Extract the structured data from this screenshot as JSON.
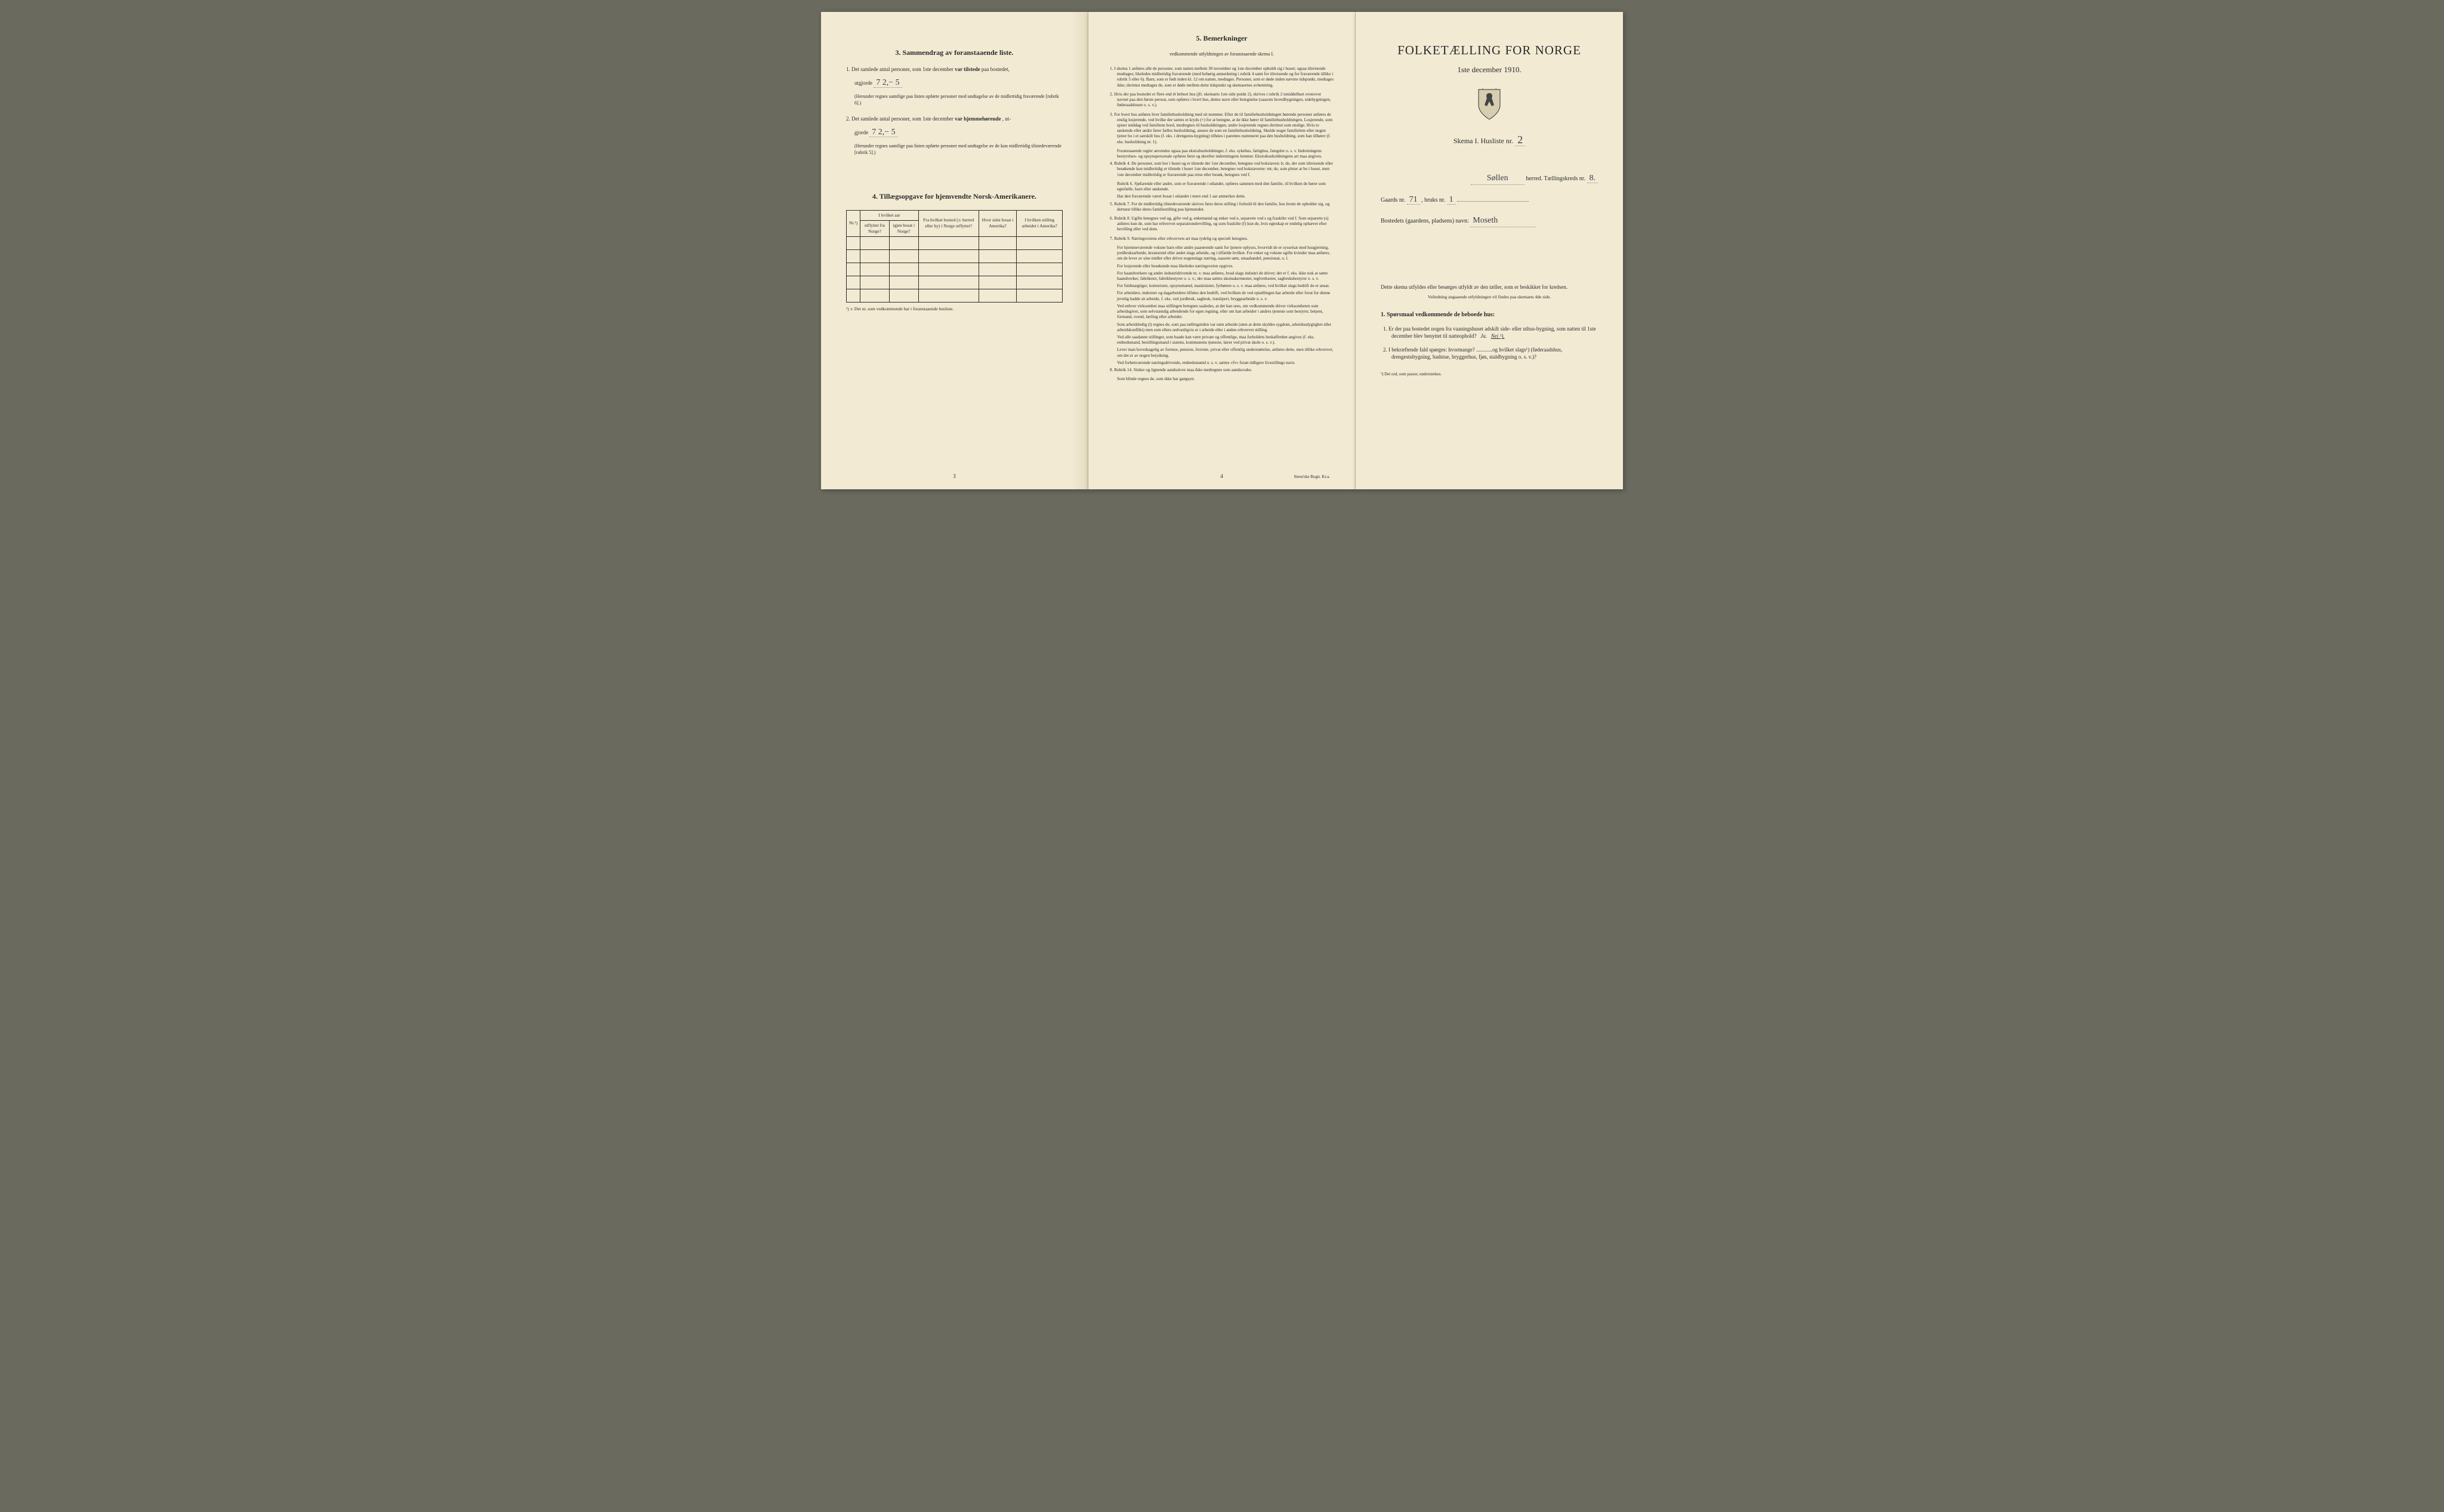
{
  "left": {
    "section3_title": "3.   Sammendrag av foranstaaende liste.",
    "item1_prefix": "1.  Det samlede antal personer, som 1ste december",
    "item1_bold": "var tilstede",
    "item1_suffix": "paa bostedet,",
    "item1_line2": "utgjorde",
    "item1_value": "7 2,− 5",
    "item1_note": "(Herunder regnes samtlige paa listen opførte personer med undtagelse av de midlertidig fraværende [rubrik 6].)",
    "item2_prefix": "2.  Det samlede antal personer, som 1ste december",
    "item2_bold": "var hjemmehørende",
    "item2_suffix": ", ut-",
    "item2_line2": "gjorde",
    "item2_value": "7 2,− 5",
    "item2_note": "(Herunder regnes samtlige paa listen opførte personer med undtagelse av de kun midlertidig tilstedeværende [rubrik 5].)",
    "section4_title": "4.   Tillægsopgave for hjemvendte Norsk-Amerikanere.",
    "table": {
      "headers": {
        "nr": "Nr.¹)",
        "col_group": "I hvilket aar",
        "col1a": "utflyttet fra Norge?",
        "col1b": "igjen bosat i Norge?",
        "col2": "Fra hvilket bosted (ɔ: herred eller by) i Norge utflyttet?",
        "col3": "Hvor sidst bosat i Amerika?",
        "col4": "I hvilken stilling arbeidet i Amerika?"
      },
      "rows": 5
    },
    "footnote": "¹) ɔ: Det nr. som vedkommende har i foranstaaende husliste.",
    "page_num": "3"
  },
  "middle": {
    "title": "5.   Bemerkninger",
    "subtitle": "vedkommende utfyldningen av foranstaaende skema I.",
    "items": [
      {
        "n": "1.",
        "text": "I skema 1 anføres alle de personer, som natten mellem 30 november og 1ste december opholdt sig i huset; ogsaa tilreisende medtages; likeledes midlertidig fraværende (med behørig anmerkning i rubrik 4 samt for tilreisende og for fraværende tillike i rubrik 5 eller 6). Barn, som er født inden kl. 12 om natten, medtages. Personer, som er døde inden nævnte tidspunkt, medtages ikke; derimot medtages de, som er døde mellem dette tidspunkt og skemaernes avhentning."
      },
      {
        "n": "2.",
        "text": "Hvis der paa bostedet er flere end ét beboet hus (jfr. skemaets 1ste side punkt 2), skrives i rubrik 2 umiddelbart ovenover navnet paa den første person, som opføres i hvert hus, dettes navn eller betegnelse (saasom hovedbygningen, sidebygningen, føderaadshuset o. s. v.)."
      },
      {
        "n": "3.",
        "text": "For hvert hus anføres hver familiehusholdning med sit nummer. Efter de til familiehusholdningen hørende personer anføres de enslig losjerende, ved hvilke der sættes et kryds (×) for at betegne, at de ikke hører til familiehusholdningen. Losjerende, som spiser middag ved familiens bord, medregnes til husholdningen; andre losjerende regnes derimot som enslige. Hvis to søskende eller andre fører fælles husholdning, ansees de som en familiehusholdning. Skulde noget familielem eller nogen tjener bo i et særskilt hus (f. eks. i drengestu-bygning) tilføies i parentes nummeret paa den husholdning, som han tilhører (f. eks. husholdning nr. 1).",
        "sub": [
          "Foranstaaende regler anvendes ogsaa paa ekstrahusholdninger, f. eks. sykehus, fattighus, fængsler o. s. v. Indretningens bestyrelses- og opsynspersonale opføres først og derefter indretningens lemmer. Ekstrahusholdningens art maa angives."
        ]
      },
      {
        "n": "4.",
        "text": "Rubrik 4. De personer, som bor i huset og er tilstede der 1ste december, betegnes ved bokstaven: b; de, der som tilreisende eller besøkende kun midlertidig er tilstede i huset 1ste december, betegnes ved bokstaverne: mt; de, som pleier at bo i huset, men 1ste december midlertidig er fraværende paa reise eller besøk, betegnes ved f.",
        "sub": [
          "Rubrik 6. Sjøfarende eller andre, som er fraværende i utlandet, opføres sammen med den familie, til hvilken de hører som egtefælle, barn eller søskende.",
          "Har den fraværende været bosat i utlandet i mere end 1 aar anmerkes dette."
        ]
      },
      {
        "n": "5.",
        "text": "Rubrik 7. For de midlertidig tilstedeværende skrives først deres stilling i forhold til den familie, hos hvem de opholder sig, og dernæst tillike deres familiestilling paa hjemstedet."
      },
      {
        "n": "6.",
        "text": "Rubrik 8. Ugifte betegnes ved ug, gifte ved g, enkemænd og enker ved e, separerte ved s og fraskilte ved f. Som separerte (s) anføres kun de, som har erhvervet separationsbevilling, og som fraskilte (f) kun de, hvis egteskap er endelig ophævet efter bevilling eller ved dom."
      },
      {
        "n": "7.",
        "text": "Rubrik 9. Næringsveiens eller erhvervets art maa tydelig og specielt betegnes.",
        "sub": [
          "For hjemmeværende voksne barn eller andre paarørende samt for tjenere oplyses, hvorvidt de er sysselsat med husgjerning, jordbruksarbeide, kreaturstel eller andet slags arbeide, og i tilfælde hvilket. For enker og voksne ugifte kvinder maa anføres, om de lever av sine midler eller driver nogenslags næring, saasom søm, smaahandel, pensionat, o. l.",
          "For losjerende eller besøkende maa likeledes næringsveien opgives.",
          "For haandverkere og andre industridrivende m. v. maa anføres, hvad slags industri de driver; det er f. eks. ikke nok at sætte haandverker, fabrikeier, fabrikbestyrer o. s. v.; der maa sættes skomakermester, teglverkseier, sagbruksbestyrer o. s. v.",
          "For fuldmægtiger, kontorister, opsynsmænd, maskinister, fyrbøtere o. s. v. maa anføres, ved hvilket slags bedrift de er ansat.",
          "For arbeidere, inderster og dagarbeidere tilføies den bedrift, ved hvilken de ved optællingen har arbeide eller forut for denne jevnlig hadde sit arbeide, f. eks. ved jordbruk, sagbruk, træsliperi, bryggearbeide o. s. v.",
          "Ved enhver virksomhet maa stillingen betegnes saaledes, at det kan sees, om vedkommende driver virksomheten som arbeidsgiver, som selvstændig arbeidende for egen regning, eller om han arbeider i andres tjeneste som bestyrer, betjent, formand, svend, lærling eller arbeider.",
          "Som arbeidsledig (l) regnes de, som paa tællingstiden var uten arbeide (uten at dette skyldes sygdom, arbeidsudygtighet eller arbeidskonflikt) men som ellers sedvanligvis er i arbeide eller i anden erhvervet stilling.",
          "Ved alle saadanne stillinger, som baade kan være private og offentlige, maa forholdets beskaffenhet angives (f. eks. embedsmand, bestillingsmand i statens, kommunens tjeneste, lærer ved privat skole o. s. v.).",
          "Lever man hovedsagelig av formue, pension, livrente, privat eller offentlig understøttelse, anføres dette, men tillike erhvervet, om det er av nogen betydning.",
          "Ved forhenværende næringsdrivende, embedsmænd o. s. v. sættes «fv» foran tidligere livsstillings navn."
        ]
      },
      {
        "n": "8.",
        "text": "Rubrik 14. Sinker og lignende aandsslove maa ikke medregnes som aandssvake.",
        "sub": [
          "Som blinde regnes de, som ikke har gangsyn."
        ]
      }
    ],
    "page_num": "4",
    "printer": "Steen'ske Bogtr. Kr.a."
  },
  "right": {
    "title": "FOLKETÆLLING FOR NORGE",
    "date": "1ste december 1910.",
    "skema_label": "Skema I.   Husliste nr.",
    "husliste_nr": "2",
    "herred_value": "Søllen",
    "herred_label": "herred.  Tællingskreds nr.",
    "kreds_nr": "8.",
    "gaards_label": "Gaards nr.",
    "gaards_nr": "71",
    "bruks_label": ", bruks nr.",
    "bruks_nr": "1",
    "bosted_label": "Bostedets (gaardens, pladsens) navn:",
    "bosted_value": "Moseth",
    "instruction": "Dette skema utfyldes eller besørges utfyldt av den tæller, som er beskikket for kredsen.",
    "instruction_sub": "Veiledning angaaende utfyldningen vil findes paa skemaets 4de side.",
    "q_heading": "1. Spørsmaal vedkommende de beboede hus:",
    "q1": "1.  Er der paa bostedet nogen fra vaaningshuset adskilt side- eller uthus-bygning, som natten til 1ste december blev benyttet til natteophold?",
    "q1_ja": "Ja.",
    "q1_nei": "Nei ¹).",
    "q2": "2.  I bekræftende fald spørges: hvormange? ............og hvilket slags¹) (føderaadshus, drengestubygning, badstue, bryggerhus, fjøs, staldbygning o. s. v.)?",
    "footnote": "¹) Det ord, som passer, understrekes."
  }
}
